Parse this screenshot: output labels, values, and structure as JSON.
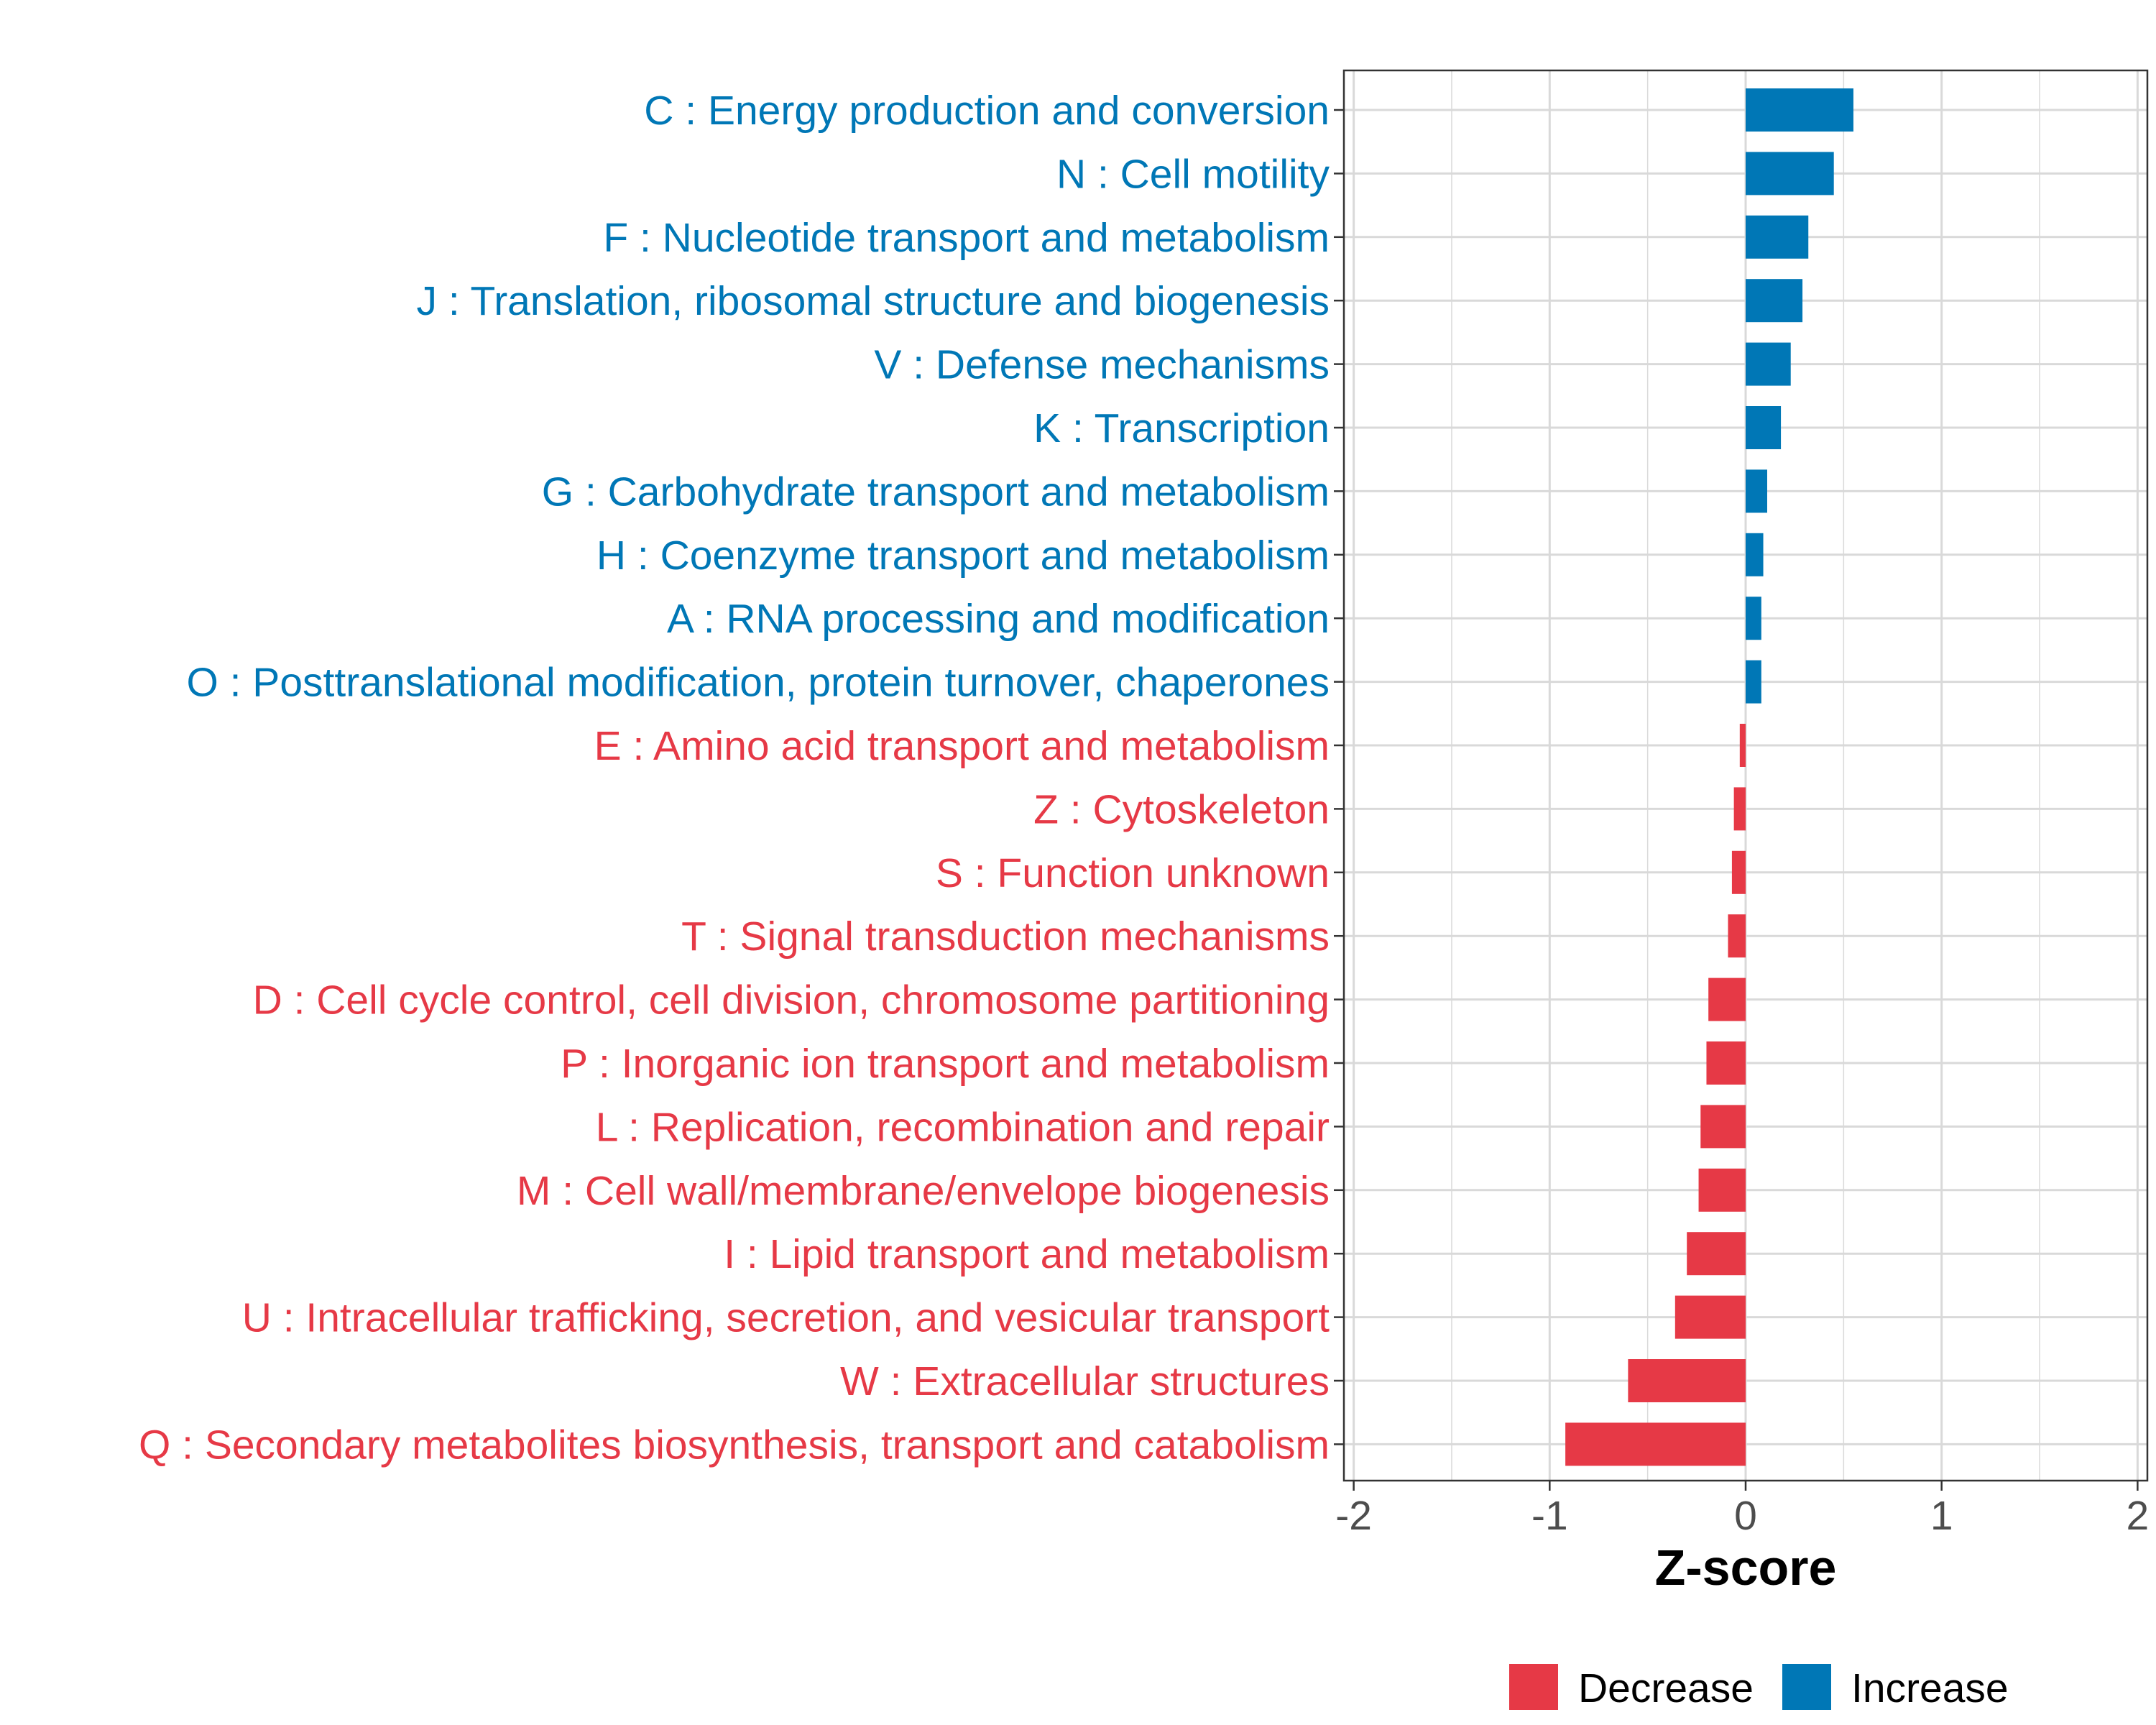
{
  "chart_data": {
    "type": "bar",
    "orientation": "horizontal",
    "xlabel": "Z-score",
    "xlim": [
      -2.05,
      2.05
    ],
    "xticks": [
      -2,
      -1,
      0,
      1,
      2
    ],
    "xtick_labels": [
      "-2",
      "-1",
      "0",
      "1",
      "2"
    ],
    "grid": true,
    "legend_position": "bottom-right",
    "colors": {
      "Decrease": "#E63946",
      "Increase": "#0077B6"
    },
    "legend": [
      {
        "key": "Decrease",
        "label": "Decrease"
      },
      {
        "key": "Increase",
        "label": "Increase"
      }
    ],
    "categories": [
      "C : Energy production and conversion",
      "N : Cell motility",
      "F : Nucleotide transport and metabolism",
      "J : Translation, ribosomal structure and biogenesis",
      "V : Defense mechanisms",
      "K : Transcription",
      "G : Carbohydrate transport and metabolism",
      "H : Coenzyme transport and metabolism",
      "A : RNA processing and modification",
      "O : Posttranslational modification, protein turnover, chaperones",
      "E : Amino acid transport and metabolism",
      "Z : Cytoskeleton",
      "S : Function unknown",
      "T : Signal transduction mechanisms",
      "D : Cell cycle control, cell division, chromosome partitioning",
      "P : Inorganic ion transport and metabolism",
      "L : Replication, recombination and repair",
      "M : Cell wall/membrane/envelope biogenesis",
      "I : Lipid transport and metabolism",
      "U : Intracellular trafficking, secretion, and vesicular transport",
      "W : Extracellular structures",
      "Q : Secondary metabolites biosynthesis, transport and catabolism"
    ],
    "values": [
      0.55,
      0.45,
      0.32,
      0.29,
      0.23,
      0.18,
      0.11,
      0.09,
      0.08,
      0.08,
      -0.03,
      -0.06,
      -0.07,
      -0.09,
      -0.19,
      -0.2,
      -0.23,
      -0.24,
      -0.3,
      -0.36,
      -0.6,
      -0.92
    ],
    "groups": [
      "Increase",
      "Increase",
      "Increase",
      "Increase",
      "Increase",
      "Increase",
      "Increase",
      "Increase",
      "Increase",
      "Increase",
      "Decrease",
      "Decrease",
      "Decrease",
      "Decrease",
      "Decrease",
      "Decrease",
      "Decrease",
      "Decrease",
      "Decrease",
      "Decrease",
      "Decrease",
      "Decrease"
    ]
  }
}
